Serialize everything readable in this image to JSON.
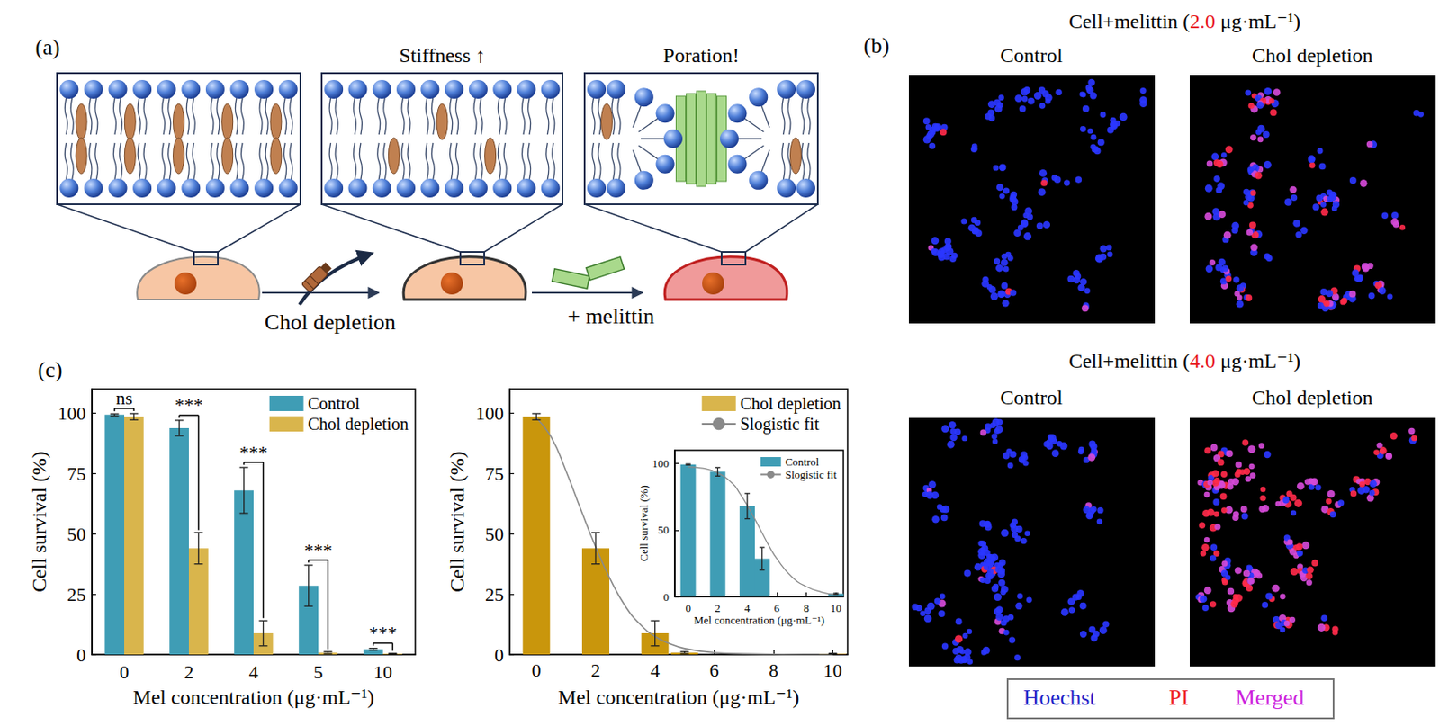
{
  "panel_a": {
    "label": "(a)",
    "steps": [
      {
        "box_title": "Stiffness ↑",
        "arrow_label": "Chol depletion"
      },
      {
        "box_title": "Poration!",
        "arrow_label": "+ melittin"
      }
    ]
  },
  "panel_b": {
    "label": "(b)",
    "rows": [
      {
        "title_parts": [
          {
            "text": "Cell+melittin ("
          },
          {
            "text": "2.0",
            "color": "#e8141c"
          },
          {
            "text": " μg·mL⁻¹)"
          }
        ],
        "columns": [
          "Control",
          "Chol depletion"
        ]
      },
      {
        "title_parts": [
          {
            "text": "Cell+melittin ("
          },
          {
            "text": "4.0",
            "color": "#e8141c"
          },
          {
            "text": " μg·mL⁻¹)"
          }
        ],
        "columns": [
          "Control",
          "Chol depletion"
        ]
      }
    ],
    "stains": [
      {
        "name": "Hoechst",
        "color": "#2323c8"
      },
      {
        "name": "PI",
        "color": "#ee1c24"
      },
      {
        "name": "Merged",
        "color": "#cc22dd"
      }
    ]
  },
  "panel_c": {
    "label": "(c)"
  },
  "chart_data": [
    {
      "type": "bar",
      "x_label": "Mel concentration (μg·mL⁻¹)",
      "y_label": "Cell survival (%)",
      "categories": [
        "0",
        "2",
        "4",
        "5",
        "10"
      ],
      "series": [
        {
          "name": "Control",
          "color": "#3f9db5",
          "values": [
            99.3,
            93.8,
            68.0,
            28.5,
            2.2
          ],
          "errors": [
            0.4,
            3.2,
            9.5,
            8.5,
            0.4
          ]
        },
        {
          "name": "Chol depletion",
          "color": "#d9b54c",
          "values": [
            98.5,
            44.0,
            8.8,
            0.8,
            0.3
          ],
          "errors": [
            1.3,
            6.5,
            5.2,
            0.4,
            0.2
          ]
        }
      ],
      "annotations": [
        {
          "category": "0",
          "label": "ns"
        },
        {
          "category": "2",
          "label": "***"
        },
        {
          "category": "4",
          "label": "***"
        },
        {
          "category": "5",
          "label": "***"
        },
        {
          "category": "10",
          "label": "***"
        }
      ],
      "ylim": [
        0,
        110
      ],
      "yticks": [
        0,
        25,
        50,
        75,
        100
      ],
      "grid": false,
      "legend": "upper right"
    },
    {
      "type": "bar",
      "x_label": "Mel concentration (μg·mL⁻¹)",
      "y_label": "Cell survival (%)",
      "series": [
        {
          "name": "Chol depletion",
          "type": "bar",
          "color": "#c9960c",
          "x": [
            0,
            2,
            4,
            5,
            10
          ],
          "values": [
            98.5,
            44.0,
            8.8,
            0.8,
            0.3
          ],
          "errors": [
            1.3,
            6.5,
            5.2,
            0.4,
            0.2
          ]
        },
        {
          "name": "Slogistic fit",
          "type": "line",
          "color": "#8a8a8a",
          "line_style": "solid",
          "x": [
            0,
            0.5,
            1,
            1.5,
            2,
            2.5,
            3,
            3.5,
            4,
            4.5,
            5,
            6,
            7,
            8,
            9,
            10
          ],
          "values": [
            98.0,
            90.0,
            76.0,
            60.0,
            44.5,
            31.0,
            20.0,
            12.5,
            7.5,
            4.5,
            2.5,
            0.8,
            0.3,
            0.1,
            0.0,
            0.0
          ]
        }
      ],
      "xlim": [
        -0.9,
        10.5
      ],
      "xticks": [
        0,
        2,
        4,
        6,
        8,
        10
      ],
      "ylim": [
        0,
        110
      ],
      "yticks": [
        0,
        25,
        50,
        75,
        100
      ],
      "grid": false,
      "legend": "upper right"
    },
    {
      "type": "bar",
      "x_label": "Mel concentration (μg·mL⁻¹)",
      "y_label": "Cell survival (%)",
      "series": [
        {
          "name": "Control",
          "type": "bar",
          "color": "#3f9db5",
          "x": [
            0,
            2,
            4,
            5,
            10
          ],
          "values": [
            99.3,
            93.8,
            68.0,
            28.5,
            2.2
          ],
          "errors": [
            0.4,
            3.2,
            9.5,
            8.5,
            0.4
          ]
        },
        {
          "name": "Slogistic fit",
          "type": "line",
          "color": "#8a8a8a",
          "line_style": "solid",
          "x": [
            0,
            1,
            2,
            3,
            3.5,
            4,
            4.5,
            5,
            5.5,
            6,
            7,
            8,
            9,
            10
          ],
          "values": [
            97.5,
            96.5,
            93.0,
            85.0,
            77.5,
            68.5,
            58.5,
            48.0,
            37.5,
            28.5,
            15.0,
            7.5,
            3.5,
            1.5
          ]
        }
      ],
      "xlim": [
        -0.9,
        10.5
      ],
      "xticks": [
        0,
        2,
        4,
        6,
        8,
        10
      ],
      "ylim": [
        0,
        110
      ],
      "yticks": [
        0,
        50,
        100
      ],
      "grid": false,
      "legend": "upper right"
    }
  ]
}
